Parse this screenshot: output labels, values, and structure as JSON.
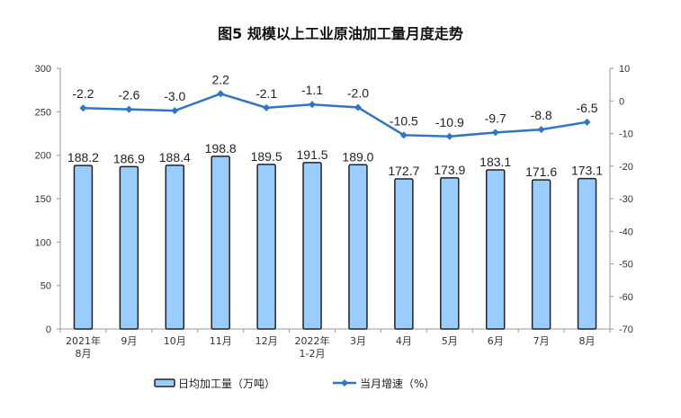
{
  "chart_data": {
    "type": "bar+line",
    "title": "图5  规模以上工业原油加工量月度走势",
    "categories": [
      [
        "2021年",
        "8月"
      ],
      [
        "9月"
      ],
      [
        "10月"
      ],
      [
        "11月"
      ],
      [
        "12月"
      ],
      [
        "2022年",
        "1-2月"
      ],
      [
        "3月"
      ],
      [
        "4月"
      ],
      [
        "5月"
      ],
      [
        "6月"
      ],
      [
        "7月"
      ],
      [
        "8月"
      ]
    ],
    "series": [
      {
        "name": "日均加工量（万吨）",
        "type": "bar",
        "axis": "left",
        "color": "#99ccff",
        "values": [
          188.2,
          186.9,
          188.4,
          198.8,
          189.5,
          191.5,
          189.0,
          172.7,
          173.9,
          183.1,
          171.6,
          173.1
        ]
      },
      {
        "name": "当月增速（%）",
        "type": "line",
        "axis": "right",
        "color": "#2e75c6",
        "values": [
          -2.2,
          -2.6,
          -3.0,
          2.2,
          -2.1,
          -1.1,
          -2.0,
          -10.5,
          -10.9,
          -9.7,
          -8.8,
          -6.5
        ]
      }
    ],
    "left_axis": {
      "min": 0,
      "max": 300,
      "step": 50
    },
    "right_axis": {
      "min": -70,
      "max": 10,
      "step": 10
    },
    "grid": false,
    "legend": "bottom"
  }
}
